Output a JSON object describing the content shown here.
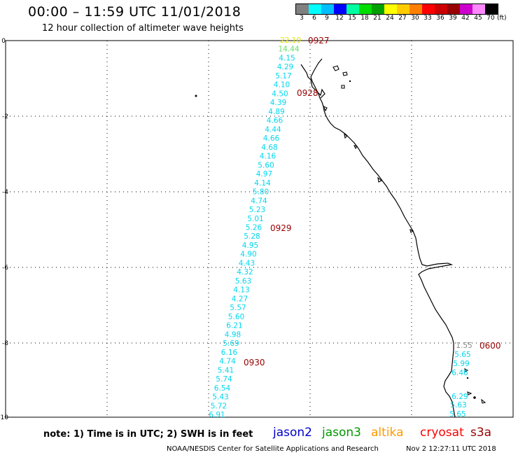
{
  "title": "00:00 – 11:59 UTC 11/01/2018",
  "subtitle": "12 hour collection of altimeter wave heights",
  "scale": {
    "unit": "(ft)",
    "labels": [
      "3",
      "6",
      "9",
      "12",
      "15",
      "18",
      "21",
      "24",
      "27",
      "30",
      "33",
      "36",
      "39",
      "42",
      "45",
      "70"
    ],
    "colors": [
      "#808080",
      "#00ffff",
      "#00bfff",
      "#0000ff",
      "#00ffa0",
      "#00dd00",
      "#00a000",
      "#ffff00",
      "#ffcc00",
      "#ff8000",
      "#ff0000",
      "#cc0000",
      "#990000",
      "#cc00cc",
      "#ff88ff",
      "#000000"
    ]
  },
  "axes": {
    "x_ticks": [
      "0",
      "3",
      "6",
      "9",
      "12",
      "15"
    ],
    "y_ticks": [
      "0",
      "-2",
      "-4",
      "-6",
      "-8",
      "-10"
    ]
  },
  "track_labels": {
    "main": [
      {
        "value": "22.10",
        "color": "#e6e600"
      },
      {
        "value": "14.44",
        "color": "#66dd66"
      },
      {
        "value": "4.15",
        "color": "#00d7ee"
      },
      {
        "value": "4.29",
        "color": "#00d7ee"
      },
      {
        "value": "5.17",
        "color": "#00d7ee"
      },
      {
        "value": "4.10",
        "color": "#00d7ee"
      },
      {
        "value": "4.50",
        "color": "#00d7ee"
      },
      {
        "value": "4.39",
        "color": "#00d7ee"
      },
      {
        "value": "4.89",
        "color": "#00d7ee"
      },
      {
        "value": "4.66",
        "color": "#00d7ee"
      },
      {
        "value": "4.44",
        "color": "#00d7ee"
      },
      {
        "value": "4.66",
        "color": "#00d7ee"
      },
      {
        "value": "4.68",
        "color": "#00d7ee"
      },
      {
        "value": "4.16",
        "color": "#00d7ee"
      },
      {
        "value": "5.60",
        "color": "#00d7ee"
      },
      {
        "value": "4.97",
        "color": "#00d7ee"
      },
      {
        "value": "4.14",
        "color": "#00d7ee"
      },
      {
        "value": "5.80",
        "color": "#00d7ee"
      },
      {
        "value": "4.74",
        "color": "#00d7ee"
      },
      {
        "value": "5.23",
        "color": "#00d7ee"
      },
      {
        "value": "5.01",
        "color": "#00d7ee"
      },
      {
        "value": "5.26",
        "color": "#00d7ee"
      },
      {
        "value": "5.28",
        "color": "#00d7ee"
      },
      {
        "value": "4.95",
        "color": "#00d7ee"
      },
      {
        "value": "4.90",
        "color": "#00d7ee"
      },
      {
        "value": "4.43",
        "color": "#00d7ee"
      },
      {
        "value": "4.32",
        "color": "#00d7ee"
      },
      {
        "value": "5.63",
        "color": "#00d7ee"
      },
      {
        "value": "4.13",
        "color": "#00d7ee"
      },
      {
        "value": "4.27",
        "color": "#00d7ee"
      },
      {
        "value": "5.57",
        "color": "#00d7ee"
      },
      {
        "value": "5.60",
        "color": "#00d7ee"
      },
      {
        "value": "6.21",
        "color": "#00d7ee"
      },
      {
        "value": "4.98",
        "color": "#00d7ee"
      },
      {
        "value": "5.69",
        "color": "#00d7ee"
      },
      {
        "value": "6.16",
        "color": "#00d7ee"
      },
      {
        "value": "4.74",
        "color": "#00d7ee"
      },
      {
        "value": "5.41",
        "color": "#00d7ee"
      },
      {
        "value": "5.74",
        "color": "#00d7ee"
      },
      {
        "value": "6.54",
        "color": "#00d7ee"
      },
      {
        "value": "5.43",
        "color": "#00d7ee"
      },
      {
        "value": "5.72",
        "color": "#00d7ee"
      },
      {
        "value": "6.91",
        "color": "#00d7ee"
      }
    ],
    "right": [
      {
        "value": "1.55",
        "color": "#888888"
      },
      {
        "value": "5.65",
        "color": "#00d7ee"
      },
      {
        "value": "5.99",
        "color": "#00d7ee"
      },
      {
        "value": "6.46",
        "color": "#00d7ee"
      },
      {
        "value": "6.29",
        "color": "#00d7ee"
      },
      {
        "value": "5.63",
        "color": "#00d7ee"
      },
      {
        "value": "5.65",
        "color": "#00d7ee"
      }
    ]
  },
  "time_labels": [
    "0927",
    "0928",
    "0929",
    "0930",
    "0600"
  ],
  "time_label_color": "#990000",
  "note": "note: 1) Time is in UTC; 2) SWH is in feet",
  "satellites": [
    {
      "name": "jason2",
      "color": "#0000cc"
    },
    {
      "name": "jason3",
      "color": "#009900"
    },
    {
      "name": "altika",
      "color": "#ff9900"
    },
    {
      "name": "cryosat",
      "color": "#ff0000"
    },
    {
      "name": "s3a",
      "color": "#990000"
    }
  ],
  "credit": "NOAA/NESDIS Center for Satellite Applications and Research",
  "generated": "Nov  2 12:27:11 UTC 2018"
}
